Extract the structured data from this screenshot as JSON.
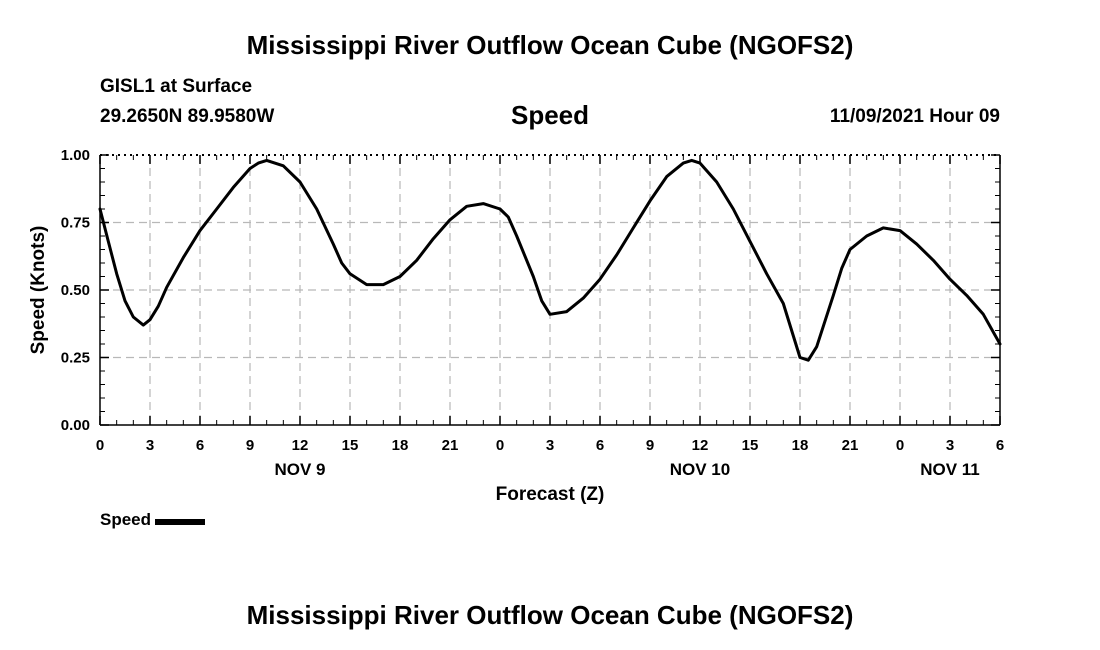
{
  "page": {
    "title_top": "Mississippi River Outflow Ocean Cube (NGOFS2)",
    "title_bottom": "Mississippi River Outflow Ocean Cube (NGOFS2)",
    "station": "GISL1 at Surface",
    "coords": "29.2650N  89.9580W",
    "variable": "Speed",
    "datetime": "11/09/2021 Hour 09"
  },
  "chart_data": {
    "type": "line",
    "xlabel": "Forecast (Z)",
    "ylabel": "Speed (Knots)",
    "x_unit": "hours",
    "xlim": [
      0,
      54
    ],
    "ylim": [
      0,
      1
    ],
    "grid": true,
    "legend_position": "bottom-left",
    "x_ticks": [
      {
        "hour": 0,
        "label": "0"
      },
      {
        "hour": 3,
        "label": "3"
      },
      {
        "hour": 6,
        "label": "6"
      },
      {
        "hour": 9,
        "label": "9"
      },
      {
        "hour": 12,
        "label": "12"
      },
      {
        "hour": 15,
        "label": "15"
      },
      {
        "hour": 18,
        "label": "18"
      },
      {
        "hour": 21,
        "label": "21"
      },
      {
        "hour": 24,
        "label": "0"
      },
      {
        "hour": 27,
        "label": "3"
      },
      {
        "hour": 30,
        "label": "6"
      },
      {
        "hour": 33,
        "label": "9"
      },
      {
        "hour": 36,
        "label": "12"
      },
      {
        "hour": 39,
        "label": "15"
      },
      {
        "hour": 42,
        "label": "18"
      },
      {
        "hour": 45,
        "label": "21"
      },
      {
        "hour": 48,
        "label": "0"
      },
      {
        "hour": 51,
        "label": "3"
      },
      {
        "hour": 54,
        "label": "6"
      }
    ],
    "date_labels": [
      {
        "hour": 12,
        "label": "NOV 9"
      },
      {
        "hour": 36,
        "label": "NOV 10"
      },
      {
        "hour": 51,
        "label": "NOV 11"
      }
    ],
    "y_ticks": [
      {
        "value": 0,
        "label": "0.00"
      },
      {
        "value": 0.25,
        "label": "0.25"
      },
      {
        "value": 0.5,
        "label": "0.50"
      },
      {
        "value": 0.75,
        "label": "0.75"
      },
      {
        "value": 1,
        "label": "1.00"
      }
    ],
    "series": [
      {
        "name": "Speed",
        "color": "#000000",
        "points": [
          [
            0,
            0.8
          ],
          [
            0.5,
            0.68
          ],
          [
            1,
            0.56
          ],
          [
            1.5,
            0.46
          ],
          [
            2,
            0.4
          ],
          [
            2.6,
            0.37
          ],
          [
            3,
            0.39
          ],
          [
            3.5,
            0.44
          ],
          [
            4,
            0.51
          ],
          [
            5,
            0.62
          ],
          [
            6,
            0.72
          ],
          [
            7,
            0.8
          ],
          [
            8,
            0.88
          ],
          [
            9,
            0.95
          ],
          [
            9.5,
            0.97
          ],
          [
            10,
            0.98
          ],
          [
            11,
            0.96
          ],
          [
            12,
            0.9
          ],
          [
            13,
            0.8
          ],
          [
            14,
            0.67
          ],
          [
            14.5,
            0.6
          ],
          [
            15,
            0.56
          ],
          [
            16,
            0.52
          ],
          [
            17,
            0.52
          ],
          [
            18,
            0.55
          ],
          [
            19,
            0.61
          ],
          [
            20,
            0.69
          ],
          [
            21,
            0.76
          ],
          [
            22,
            0.81
          ],
          [
            23,
            0.82
          ],
          [
            24,
            0.8
          ],
          [
            24.5,
            0.77
          ],
          [
            25,
            0.7
          ],
          [
            26,
            0.55
          ],
          [
            26.5,
            0.46
          ],
          [
            27,
            0.41
          ],
          [
            28,
            0.42
          ],
          [
            29,
            0.47
          ],
          [
            30,
            0.54
          ],
          [
            31,
            0.63
          ],
          [
            32,
            0.73
          ],
          [
            33,
            0.83
          ],
          [
            34,
            0.92
          ],
          [
            35,
            0.97
          ],
          [
            35.5,
            0.98
          ],
          [
            36,
            0.97
          ],
          [
            37,
            0.9
          ],
          [
            38,
            0.8
          ],
          [
            39,
            0.68
          ],
          [
            40,
            0.56
          ],
          [
            41,
            0.45
          ],
          [
            42,
            0.25
          ],
          [
            42.5,
            0.24
          ],
          [
            43,
            0.29
          ],
          [
            44,
            0.48
          ],
          [
            44.5,
            0.58
          ],
          [
            45,
            0.65
          ],
          [
            46,
            0.7
          ],
          [
            47,
            0.73
          ],
          [
            48,
            0.72
          ],
          [
            49,
            0.67
          ],
          [
            50,
            0.61
          ],
          [
            51,
            0.54
          ],
          [
            52,
            0.48
          ],
          [
            53,
            0.41
          ],
          [
            54,
            0.3
          ]
        ]
      }
    ]
  }
}
